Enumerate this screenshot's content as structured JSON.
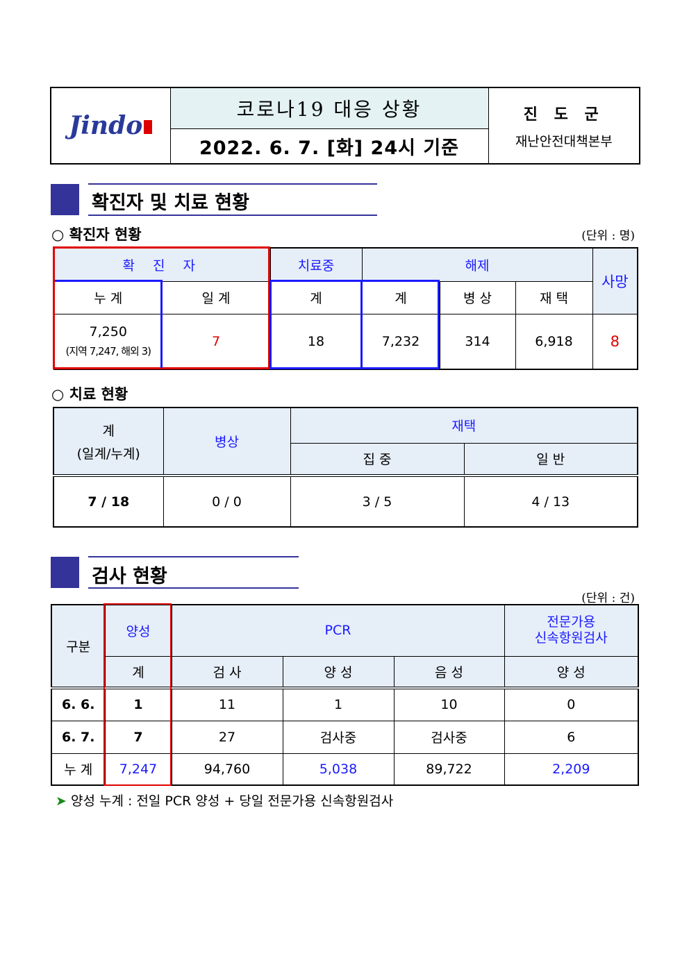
{
  "header": {
    "logo_text": "Jindo",
    "title": "코로나19 대응 상황",
    "date": "2022. 6. 7. [화] 24시 기준",
    "org_name": "진 도 군",
    "org_dept": "재난안전대책본부"
  },
  "section1": {
    "title": "확진자 및 치료 현황",
    "confirmed": {
      "subtitle": "○ 확진자 현황",
      "unit": "(단위 : 명)",
      "headers": {
        "confirmed": "확 진 자",
        "treating": "치료중",
        "released": "해제",
        "death": "사망",
        "cumulative": "누 계",
        "daily": "일 계",
        "treating_total": "계",
        "released_total": "계",
        "hospital": "병 상",
        "home": "재 택"
      },
      "values": {
        "cumulative": "7,250",
        "cumulative_detail": "(지역 7,247, 해외 3)",
        "daily": "7",
        "treating": "18",
        "released_total": "7,232",
        "hospital": "314",
        "home": "6,918",
        "death": "8"
      }
    },
    "treatment": {
      "subtitle": "○ 치료 현황",
      "headers": {
        "total": "계",
        "total_sub": "(일계/누계)",
        "hospital": "병상",
        "home": "재택",
        "intensive": "집 중",
        "general": "일 반"
      },
      "values": {
        "total": "7 / 18",
        "hospital": "0 / 0",
        "intensive": "3 / 5",
        "general": "4 / 13"
      }
    }
  },
  "section2": {
    "title": "검사 현황",
    "unit": "(단위 : 건)",
    "headers": {
      "category": "구분",
      "positive": "양성",
      "pcr": "PCR",
      "rapid": "전문가용\n신속항원검사",
      "positive_total": "계",
      "tests": "검 사",
      "pcr_positive": "양 성",
      "pcr_negative": "음 성",
      "rapid_positive": "양 성"
    },
    "rows": [
      {
        "label": "6. 6.",
        "positive": "1",
        "tests": "11",
        "pcr_positive": "1",
        "pcr_negative": "10",
        "rapid_positive": "0"
      },
      {
        "label": "6. 7.",
        "positive": "7",
        "tests": "27",
        "pcr_positive": "검사중",
        "pcr_negative": "검사중",
        "rapid_positive": "6"
      },
      {
        "label": "누 계",
        "positive": "7,247",
        "tests": "94,760",
        "pcr_positive": "5,038",
        "pcr_negative": "89,722",
        "rapid_positive": "2,209"
      }
    ],
    "note": "양성 누계 : 전일 PCR 양성 + 당일 전문가용 신속항원검사"
  },
  "colors": {
    "accent": "#33339a",
    "header_bg": "#e6eef8",
    "red": "#e00000",
    "blue": "#1a1aff"
  }
}
